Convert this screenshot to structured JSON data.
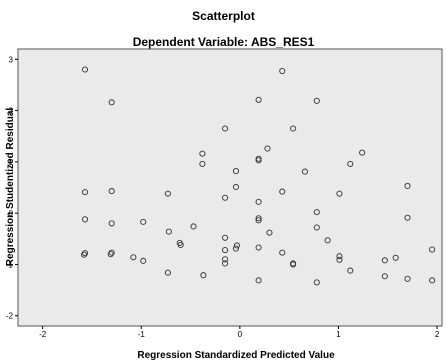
{
  "chart_data": {
    "type": "scatter",
    "title": "Scatterplot",
    "subtitle": "Dependent Variable: ABS_RES1",
    "xlabel": "Regression Standardized Predicted Value",
    "ylabel": "Regression Studentized Residual",
    "xlim": [
      -2.25,
      2.05
    ],
    "ylim": [
      -2.2,
      3.2
    ],
    "xticks": [
      -2,
      -1,
      0,
      1,
      2
    ],
    "yticks": [
      -2,
      -1,
      0,
      1,
      2,
      3
    ],
    "grid": false,
    "legend": "none",
    "colors": {
      "plot_bg": "#eaeaea",
      "marker": "#333333"
    },
    "points": [
      {
        "x": -1.57,
        "y": 2.8
      },
      {
        "x": -1.57,
        "y": 0.41
      },
      {
        "x": -1.57,
        "y": -0.12
      },
      {
        "x": -1.57,
        "y": -0.78
      },
      {
        "x": -1.58,
        "y": -0.81
      },
      {
        "x": -1.3,
        "y": 2.16
      },
      {
        "x": -1.3,
        "y": 0.43
      },
      {
        "x": -1.3,
        "y": -0.2
      },
      {
        "x": -1.3,
        "y": -0.77
      },
      {
        "x": -1.31,
        "y": -0.8
      },
      {
        "x": -1.08,
        "y": -0.86
      },
      {
        "x": -0.98,
        "y": -0.17
      },
      {
        "x": -0.98,
        "y": -0.93
      },
      {
        "x": -0.73,
        "y": 0.38
      },
      {
        "x": -0.73,
        "y": -1.16
      },
      {
        "x": -0.72,
        "y": -0.36
      },
      {
        "x": -0.61,
        "y": -0.58
      },
      {
        "x": -0.6,
        "y": -0.62
      },
      {
        "x": -0.47,
        "y": -0.26
      },
      {
        "x": -0.38,
        "y": 1.16
      },
      {
        "x": -0.38,
        "y": 0.96
      },
      {
        "x": -0.37,
        "y": -1.21
      },
      {
        "x": -0.15,
        "y": 1.65
      },
      {
        "x": -0.15,
        "y": 0.3
      },
      {
        "x": -0.15,
        "y": -0.48
      },
      {
        "x": -0.15,
        "y": -0.72
      },
      {
        "x": -0.15,
        "y": -0.9
      },
      {
        "x": -0.15,
        "y": -0.98
      },
      {
        "x": -0.04,
        "y": 0.82
      },
      {
        "x": -0.04,
        "y": 0.51
      },
      {
        "x": -0.03,
        "y": -0.63
      },
      {
        "x": -0.04,
        "y": -0.69
      },
      {
        "x": 0.19,
        "y": 2.21
      },
      {
        "x": 0.19,
        "y": 1.03
      },
      {
        "x": 0.19,
        "y": 1.06
      },
      {
        "x": 0.19,
        "y": 0.22
      },
      {
        "x": 0.19,
        "y": -0.1
      },
      {
        "x": 0.19,
        "y": -0.14
      },
      {
        "x": 0.19,
        "y": -0.67
      },
      {
        "x": 0.19,
        "y": -1.31
      },
      {
        "x": 0.28,
        "y": 1.26
      },
      {
        "x": 0.3,
        "y": -0.38
      },
      {
        "x": 0.43,
        "y": 2.77
      },
      {
        "x": 0.43,
        "y": 0.42
      },
      {
        "x": 0.43,
        "y": -0.77
      },
      {
        "x": 0.54,
        "y": 1.65
      },
      {
        "x": 0.54,
        "y": -0.98
      },
      {
        "x": 0.54,
        "y": -1.0
      },
      {
        "x": 0.66,
        "y": 0.81
      },
      {
        "x": 0.78,
        "y": 2.19
      },
      {
        "x": 0.78,
        "y": 0.02
      },
      {
        "x": 0.78,
        "y": -0.28
      },
      {
        "x": 0.78,
        "y": -1.35
      },
      {
        "x": 0.89,
        "y": -0.53
      },
      {
        "x": 1.01,
        "y": 0.38
      },
      {
        "x": 1.01,
        "y": -0.84
      },
      {
        "x": 1.01,
        "y": -0.91
      },
      {
        "x": 1.12,
        "y": 0.96
      },
      {
        "x": 1.12,
        "y": -1.12
      },
      {
        "x": 1.24,
        "y": 1.18
      },
      {
        "x": 1.47,
        "y": -0.92
      },
      {
        "x": 1.47,
        "y": -1.23
      },
      {
        "x": 1.58,
        "y": -0.87
      },
      {
        "x": 1.7,
        "y": 0.53
      },
      {
        "x": 1.7,
        "y": -0.09
      },
      {
        "x": 1.7,
        "y": -1.28
      },
      {
        "x": 1.95,
        "y": -0.71
      },
      {
        "x": 1.95,
        "y": -1.31
      }
    ]
  }
}
